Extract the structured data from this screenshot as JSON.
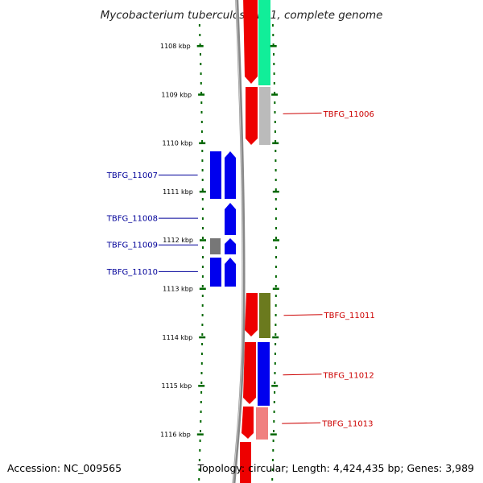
{
  "title": "Mycobacterium tuberculosis F11, complete genome",
  "accession": "Accession: NC_009565",
  "summary": "Topology: circular; Length: 4,424,435 bp; Genes: 3,989",
  "colors": {
    "forward_label": "#cc0000",
    "reverse_label": "#000099",
    "tick": "#006600",
    "backbone": "#888888"
  },
  "ticks": [
    {
      "kbp": 1108,
      "label": "1108 kbp"
    },
    {
      "kbp": 1109,
      "label": "1109 kbp"
    },
    {
      "kbp": 1110,
      "label": "1110 kbp"
    },
    {
      "kbp": 1111,
      "label": "1111 kbp"
    },
    {
      "kbp": 1112,
      "label": "1112 kbp"
    },
    {
      "kbp": 1113,
      "label": "1113 kbp"
    },
    {
      "kbp": 1114,
      "label": "1114 kbp"
    },
    {
      "kbp": 1115,
      "label": "1115 kbp"
    },
    {
      "kbp": 1116,
      "label": "1116 kbp"
    }
  ],
  "gene_labels": [
    {
      "name": "TBFG_11006",
      "strand": "forward",
      "kbp": 1109.4
    },
    {
      "name": "TBFG_11007",
      "strand": "reverse",
      "kbp": 1110.66
    },
    {
      "name": "TBFG_11008",
      "strand": "reverse",
      "kbp": 1111.55
    },
    {
      "name": "TBFG_11009",
      "strand": "reverse",
      "kbp": 1112.1
    },
    {
      "name": "TBFG_11010",
      "strand": "reverse",
      "kbp": 1112.65
    },
    {
      "name": "TBFG_11011",
      "strand": "forward",
      "kbp": 1113.55
    },
    {
      "name": "TBFG_11012",
      "strand": "forward",
      "kbp": 1114.78
    },
    {
      "name": "TBFG_11013",
      "strand": "forward",
      "kbp": 1115.78
    }
  ]
}
